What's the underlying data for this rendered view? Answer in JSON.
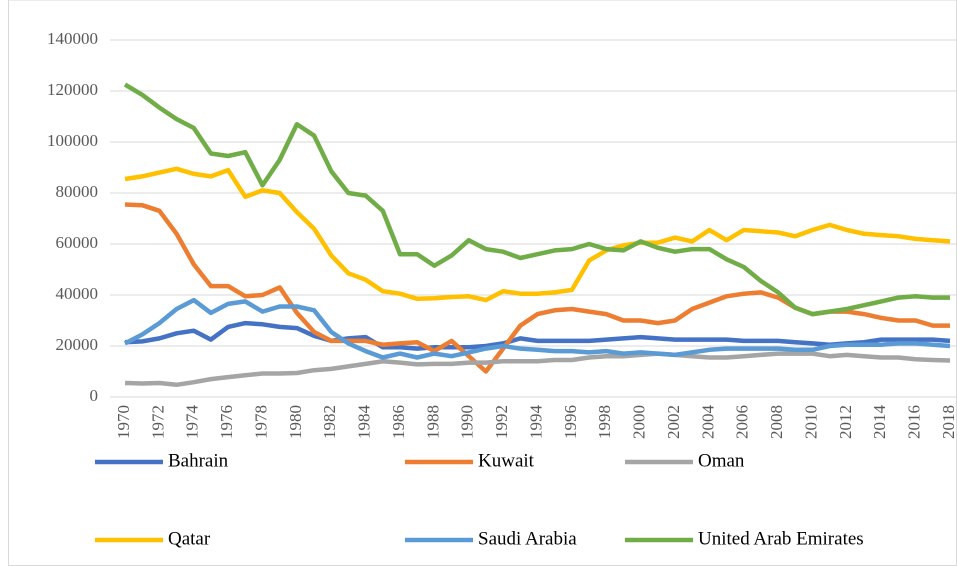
{
  "chart_data": {
    "type": "line",
    "categories": [
      "1970",
      null,
      "1972",
      null,
      "1974",
      null,
      "1976",
      null,
      "1978",
      null,
      "1980",
      null,
      "1982",
      null,
      "1984",
      null,
      "1986",
      null,
      "1988",
      null,
      "1990",
      null,
      "1992",
      null,
      "1994",
      null,
      "1996",
      null,
      "1998",
      null,
      "2000",
      null,
      "2002",
      null,
      "2004",
      null,
      "2006",
      null,
      "2008",
      null,
      "2010",
      null,
      "2012",
      null,
      "2014",
      null,
      "2016",
      null,
      "2018"
    ],
    "series": [
      {
        "name": "Bahrain",
        "color": "#4472c4",
        "values": [
          21500,
          21800,
          23000,
          25000,
          26000,
          22500,
          27500,
          29000,
          28500,
          27500,
          27000,
          24000,
          22000,
          23000,
          23500,
          19500,
          19500,
          19000,
          19500,
          19500,
          19500,
          20000,
          21000,
          23000,
          22000,
          22000,
          22000,
          22000,
          22500,
          23000,
          23500,
          23000,
          22500,
          22500,
          22500,
          22500,
          22000,
          22000,
          22000,
          21500,
          21000,
          20500,
          21000,
          21500,
          22500,
          22500,
          22500,
          22500,
          22000
        ]
      },
      {
        "name": "Kuwait",
        "color": "#ed7d31",
        "values": [
          75500,
          75200,
          73000,
          64000,
          52000,
          43500,
          43500,
          39500,
          40000,
          43000,
          33000,
          25500,
          22000,
          22000,
          22000,
          20500,
          21000,
          21500,
          18000,
          22000,
          16000,
          10000,
          19000,
          28000,
          32500,
          34000,
          34500,
          33500,
          32500,
          30000,
          30000,
          29000,
          30000,
          34500,
          37000,
          39500,
          40500,
          41000,
          39000,
          35000,
          32500,
          33500,
          33500,
          32500,
          31000,
          30000,
          30000,
          28000,
          28000
        ]
      },
      {
        "name": "Oman",
        "color": "#a5a5a5",
        "values": [
          5500,
          5300,
          5500,
          4800,
          5800,
          7000,
          7800,
          8500,
          9200,
          9200,
          9400,
          10500,
          11000,
          12000,
          13000,
          14000,
          13500,
          12800,
          13000,
          13000,
          13500,
          13500,
          14000,
          14000,
          14000,
          14500,
          14500,
          15500,
          16000,
          16000,
          16500,
          17000,
          16500,
          16000,
          15500,
          15500,
          16000,
          16500,
          17000,
          17000,
          17000,
          16000,
          16500,
          16000,
          15500,
          15500,
          14800,
          14500,
          14300
        ]
      },
      {
        "name": "Qatar",
        "color": "#ffc000",
        "values": [
          85500,
          86500,
          88000,
          89500,
          87500,
          86500,
          89000,
          78500,
          81000,
          80000,
          72500,
          66000,
          55500,
          48500,
          46000,
          41500,
          40500,
          38500,
          38700,
          39200,
          39500,
          38000,
          41500,
          40500,
          40500,
          41000,
          42000,
          53500,
          57500,
          59500,
          60500,
          60500,
          62500,
          61000,
          65500,
          61500,
          65500,
          65000,
          64500,
          63000,
          65500,
          67500,
          65500,
          64000,
          63500,
          63000,
          62000,
          61500,
          61000
        ]
      },
      {
        "name": "Saudi Arabia",
        "color": "#5b9bd5",
        "values": [
          21000,
          24500,
          29000,
          34500,
          38000,
          33000,
          36500,
          37500,
          33500,
          35500,
          35500,
          34000,
          25500,
          21000,
          18000,
          15500,
          17000,
          15500,
          17000,
          16000,
          17500,
          19000,
          20000,
          19000,
          18500,
          18000,
          18000,
          17500,
          18000,
          17000,
          17500,
          17000,
          16500,
          17500,
          18500,
          19000,
          19000,
          19000,
          19000,
          18500,
          18500,
          20000,
          20500,
          20500,
          20500,
          21000,
          21000,
          20500,
          20000
        ]
      },
      {
        "name": "United Arab Emirates",
        "color": "#70ad47",
        "values": [
          122500,
          118500,
          113500,
          109000,
          105500,
          95500,
          94500,
          96000,
          83000,
          93000,
          107000,
          102500,
          88500,
          80000,
          79000,
          73000,
          56000,
          56000,
          51500,
          55500,
          61500,
          58000,
          57000,
          54500,
          56000,
          57500,
          58000,
          60000,
          58000,
          57500,
          61000,
          58500,
          57000,
          58000,
          58000,
          54000,
          51000,
          45500,
          41000,
          35000,
          32500,
          33500,
          34500,
          36000,
          37500,
          39000,
          39500,
          39000,
          39000
        ]
      }
    ],
    "ylim": [
      0,
      140000
    ],
    "yticks": [
      0,
      20000,
      40000,
      60000,
      80000,
      100000,
      120000,
      140000
    ],
    "grid": true
  }
}
